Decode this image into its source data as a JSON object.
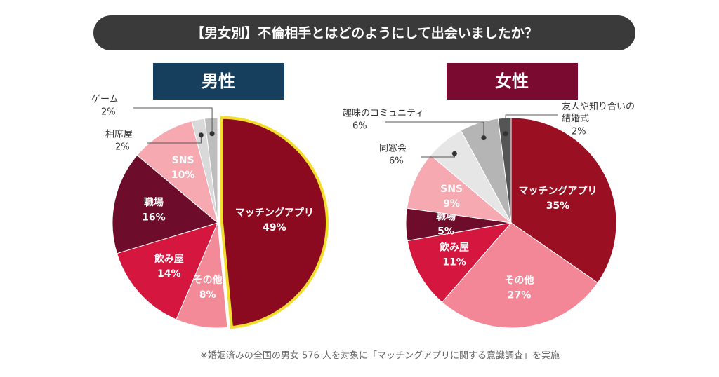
{
  "title": "【男女別】不倫相手とはどのようにして出会いましたか？",
  "note": "※婚姻済みの全国の男女 576 人を対象に「マッチングアプリに関する意識調査」を実施",
  "chart_data": [
    {
      "type": "pie",
      "title": "男性",
      "title_color": "#163f5e",
      "highlight_color": "#f2de2c",
      "categories": [
        "マッチングアプリ",
        "その他",
        "飲み屋",
        "職場",
        "SNS",
        "相席屋",
        "ゲーム"
      ],
      "values": [
        49,
        8,
        14,
        16,
        10,
        2,
        2
      ],
      "value_labels": [
        "49%",
        "8%",
        "14%",
        "16%",
        "10%",
        "2%",
        "2%"
      ],
      "colors": [
        "#8c0a1f",
        "#f28a98",
        "#d5173f",
        "#6d0d2b",
        "#f6a9b1",
        "#d9d9d9",
        "#bdbdbd"
      ]
    },
    {
      "type": "pie",
      "title": "女性",
      "title_color": "#7b0a31",
      "categories": [
        "マッチングアプリ",
        "その他",
        "飲み屋",
        "職場",
        "SNS",
        "同窓会",
        "趣味のコミュニティ",
        "友人や知り合いの\n結婚式"
      ],
      "values": [
        35,
        27,
        11,
        5,
        9,
        6,
        6,
        2
      ],
      "value_labels": [
        "35%",
        "27%",
        "11%",
        "5%",
        "9%",
        "6%",
        "6%",
        "2%"
      ],
      "colors": [
        "#9b0f23",
        "#f48797",
        "#d5173f",
        "#6d0d2b",
        "#f6a9b1",
        "#e6e6e6",
        "#b5b5b5",
        "#555555"
      ]
    }
  ]
}
